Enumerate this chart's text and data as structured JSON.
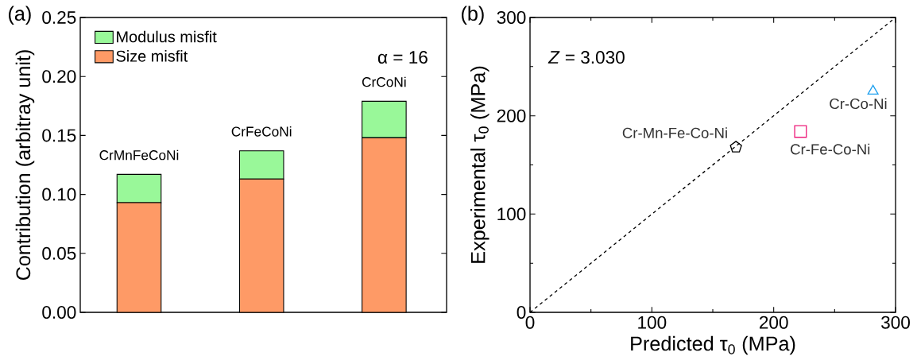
{
  "chart_data": [
    {
      "type": "bar",
      "stacked": true,
      "ylabel": "Contribution (arbitray unit)",
      "categories": [
        "CrMnFeCoNi",
        "CrFeCoNi",
        "CrCoNi"
      ],
      "tick_labels": "y",
      "ylim": [
        0,
        0.25
      ],
      "yticks": [
        {
          "value": 0,
          "label": "0.00"
        },
        {
          "value": 0.05,
          "label": "0.05"
        },
        {
          "value": 0.1,
          "label": "0.10"
        },
        {
          "value": 0.15,
          "label": "0.15"
        },
        {
          "value": 0.2,
          "label": "0.20"
        },
        {
          "value": 0.25,
          "label": "0.25"
        }
      ],
      "legend": "top left",
      "annotations": [
        "(a)",
        "α = 16"
      ],
      "series": [
        {
          "name": "Size misfit",
          "color": "#fe9a66",
          "values": [
            0.093,
            0.113,
            0.148
          ]
        },
        {
          "name": "Modulus misfit",
          "color": "#99f899",
          "values": [
            0.024,
            0.024,
            0.031
          ]
        }
      ]
    },
    {
      "type": "scatter",
      "xlabel": "Predicted τ$_{0}$ (MPa)",
      "ylabel": "Experimental τ$_{0}$ (MPa)",
      "xlim": [
        0,
        300
      ],
      "ylim": [
        0,
        300
      ],
      "xticks": [
        0,
        100,
        200,
        300
      ],
      "yticks": [
        0,
        100,
        200,
        300
      ],
      "annotations": [
        "(b)",
        "*Z* = 3.030"
      ],
      "series": [
        {
          "name": "Cr-Mn-Fe-Co-Ni",
          "color": "#000000",
          "x": [
            169
          ],
          "values": [
            168
          ]
        },
        {
          "name": "Cr-Fe-Co-Ni",
          "color": "#ee1e7b",
          "marker": "square",
          "x": [
            222
          ],
          "values": [
            184
          ]
        },
        {
          "name": "Cr-Co-Ni",
          "color": "#1ea0ef",
          "marker": "triangle",
          "x": [
            281.5
          ],
          "values": [
            225
          ]
        },
        {
          "type": "line",
          "color": "#000000",
          "line_style": "dashed",
          "marker": "none",
          "x": [
            0,
            300
          ],
          "values": [
            0,
            300
          ]
        }
      ]
    }
  ]
}
